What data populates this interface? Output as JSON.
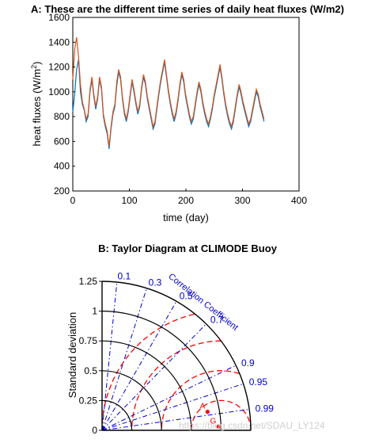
{
  "panelA": {
    "title": "A: These are the different time series of daily heat fluxes (W/m2)",
    "xlabel": "time (day)",
    "ylabel_prefix": "heat fluxes (W/m",
    "ylabel_sup": "2",
    "ylabel_suffix": ")",
    "xticks": [
      "0",
      "100",
      "200",
      "300",
      "400"
    ],
    "yticks": [
      "200",
      "400",
      "600",
      "800",
      "1000",
      "1200",
      "1400",
      "1600"
    ],
    "colors": {
      "series1": "#0072bd",
      "series2": "#d95319"
    }
  },
  "panelB": {
    "title": "B: Taylor Diagram at CLIMODE Buoy",
    "ylabel": "Standard deviation",
    "sd_ticks": [
      "0",
      "0.25",
      "0.5",
      "0.75",
      "1",
      "1.25"
    ],
    "corr_label": "Correlation Coefficient",
    "corr_ticks": [
      "0.1",
      "0.3",
      "0.5",
      "0.7",
      "0.9",
      "0.95",
      "0.99"
    ],
    "point_labels": [
      "A",
      "G"
    ],
    "colors": {
      "axes": "#000000",
      "corr_lines": "#0000cc",
      "rms_arcs": "#ff0000",
      "points": "#ff0000"
    }
  },
  "watermark": "https://blog.csdn.net/SDAU_LY124",
  "chart_data": [
    {
      "type": "line",
      "title": "A: These are the different time series of daily heat fluxes (W/m2)",
      "xlabel": "time (day)",
      "ylabel": "heat fluxes (W/m2)",
      "xlim": [
        0,
        400
      ],
      "ylim": [
        200,
        1600
      ],
      "grid": false,
      "series": [
        {
          "values": [
            840,
            980,
            1180,
            1260,
            1000,
            900,
            850,
            760,
            800,
            1000,
            1100,
            960,
            860,
            940,
            1100,
            1020,
            800,
            720,
            660,
            540,
            700,
            820,
            880,
            1050,
            1160,
            1100,
            940,
            820,
            760,
            840,
            960,
            1080,
            1000,
            900,
            820,
            880,
            1020,
            1120,
            1060,
            940,
            860,
            780,
            700,
            740,
            860,
            980,
            1080,
            1160,
            1240,
            1120,
            1000,
            900,
            820,
            760,
            820,
            920,
            1040,
            1140,
            1080,
            960,
            880,
            800,
            740,
            780,
            880,
            980,
            1060,
            1000,
            900,
            820,
            760,
            720,
            780,
            860,
            960,
            1040,
            1120,
            1200,
            1100,
            980,
            880,
            800,
            740,
            700,
            760,
            860,
            960,
            1040,
            980,
            900,
            840,
            780,
            720,
            760,
            840,
            920,
            1000,
            960,
            880,
            820,
            760
          ]
        },
        {
          "values": [
            1100,
            1340,
            1440,
            1280,
            1060,
            920,
            860,
            780,
            820,
            1020,
            1120,
            980,
            880,
            960,
            1120,
            1040,
            820,
            740,
            680,
            560,
            720,
            840,
            900,
            1080,
            1180,
            1120,
            960,
            840,
            780,
            860,
            980,
            1100,
            1020,
            920,
            840,
            900,
            1040,
            1140,
            1080,
            960,
            880,
            800,
            720,
            760,
            880,
            1000,
            1100,
            1180,
            1260,
            1140,
            1020,
            920,
            840,
            780,
            840,
            940,
            1060,
            1160,
            1100,
            980,
            900,
            820,
            760,
            800,
            900,
            1000,
            1080,
            1020,
            920,
            840,
            780,
            740,
            800,
            880,
            980,
            1060,
            1140,
            1220,
            1120,
            1000,
            900,
            820,
            760,
            720,
            780,
            880,
            980,
            1060,
            1000,
            920,
            860,
            800,
            740,
            780,
            860,
            940,
            1020,
            980,
            900,
            840,
            780
          ]
        }
      ]
    },
    {
      "type": "scatter",
      "title": "B: Taylor Diagram at CLIMODE Buoy",
      "ylabel": "Standard deviation",
      "xlim": [
        0,
        1.25
      ],
      "ylim": [
        0,
        1.25
      ],
      "correlation_ticks": [
        0.1,
        0.3,
        0.5,
        0.7,
        0.9,
        0.95,
        0.99
      ],
      "sd_arcs": [
        0.25,
        0.5,
        0.75,
        1,
        1.25
      ],
      "rms_arcs": [
        0.25,
        0.5,
        0.75,
        1
      ],
      "reference_sd": 1,
      "points": [
        {
          "label": "A",
          "sd": 0.9,
          "corr": 0.985
        },
        {
          "label": "G",
          "sd": 0.98,
          "corr": 0.9995
        }
      ]
    }
  ]
}
